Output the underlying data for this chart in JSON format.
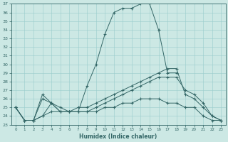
{
  "xlabel": "Humidex (Indice chaleur)",
  "ylabel": "",
  "background_color": "#cce8e4",
  "line_color": "#336666",
  "grid_color": "#99cccc",
  "xlim": [
    -0.5,
    23.5
  ],
  "ylim": [
    23,
    37
  ],
  "yticks": [
    23,
    24,
    25,
    26,
    27,
    28,
    29,
    30,
    31,
    32,
    33,
    34,
    35,
    36,
    37
  ],
  "xticks": [
    0,
    1,
    2,
    3,
    4,
    5,
    6,
    7,
    8,
    9,
    10,
    11,
    12,
    13,
    14,
    15,
    16,
    17,
    18,
    19,
    20,
    21,
    22,
    23
  ],
  "series": [
    {
      "x": [
        0,
        1,
        2,
        3,
        4,
        5,
        6,
        7,
        8,
        9,
        10,
        11,
        12,
        13,
        14,
        15,
        16,
        17,
        18
      ],
      "y": [
        25.0,
        23.5,
        23.5,
        26.5,
        25.5,
        25.0,
        24.5,
        24.5,
        27.5,
        30.0,
        33.5,
        36.0,
        36.5,
        36.5,
        37.0,
        37.0,
        34.0,
        29.0,
        29.0
      ]
    },
    {
      "x": [
        0,
        1,
        2,
        3,
        4,
        5,
        6,
        7,
        8,
        9,
        10,
        11,
        12,
        13,
        14,
        15,
        16,
        17,
        18,
        19,
        20,
        21,
        22,
        23
      ],
      "y": [
        25.0,
        23.5,
        23.5,
        26.0,
        25.5,
        24.5,
        24.5,
        25.0,
        25.0,
        25.5,
        26.0,
        26.5,
        27.0,
        27.5,
        28.0,
        28.5,
        29.0,
        29.5,
        29.5,
        26.5,
        26.0,
        25.0,
        24.0,
        23.5
      ]
    },
    {
      "x": [
        0,
        1,
        2,
        3,
        4,
        5,
        6,
        7,
        8,
        9,
        10,
        11,
        12,
        13,
        14,
        15,
        16,
        17,
        18,
        19,
        20,
        21,
        22,
        23
      ],
      "y": [
        25.0,
        23.5,
        23.5,
        24.0,
        25.5,
        24.5,
        24.5,
        24.5,
        24.5,
        25.0,
        25.5,
        26.0,
        26.5,
        27.0,
        27.5,
        28.0,
        28.5,
        28.5,
        28.5,
        27.0,
        26.5,
        25.5,
        24.0,
        23.5
      ]
    },
    {
      "x": [
        0,
        1,
        2,
        3,
        4,
        5,
        6,
        7,
        8,
        9,
        10,
        11,
        12,
        13,
        14,
        15,
        16,
        17,
        18,
        19,
        20,
        21,
        22,
        23
      ],
      "y": [
        25.0,
        23.5,
        23.5,
        24.0,
        24.5,
        24.5,
        24.5,
        24.5,
        24.5,
        24.5,
        25.0,
        25.0,
        25.5,
        25.5,
        26.0,
        26.0,
        26.0,
        25.5,
        25.5,
        25.0,
        25.0,
        24.0,
        23.5,
        23.5
      ]
    }
  ]
}
